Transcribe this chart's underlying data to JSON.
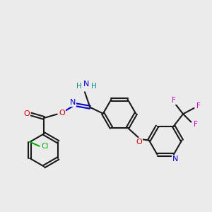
{
  "bg_color": "#ebebeb",
  "bond_color": "#1a1a1a",
  "bond_width": 1.5,
  "atom_colors": {
    "N": "#0000cc",
    "O": "#cc0000",
    "Cl": "#00aa00",
    "F": "#cc00cc",
    "H": "#008888",
    "C": "#1a1a1a"
  }
}
